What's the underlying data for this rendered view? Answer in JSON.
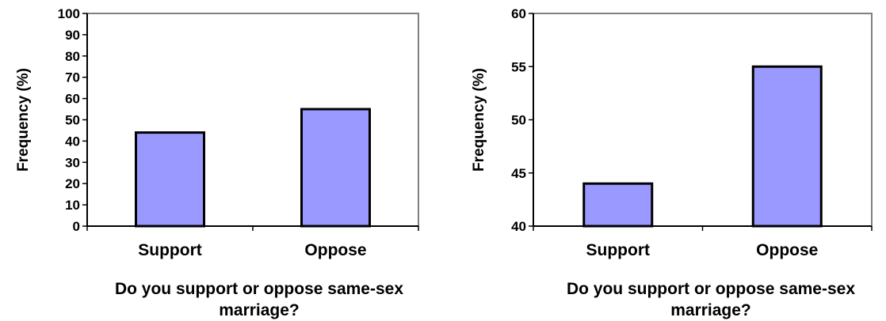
{
  "colors": {
    "bar_fill": "#9999ff",
    "bar_stroke": "#000000",
    "plot_border": "#808080"
  },
  "chart_data": [
    {
      "type": "bar",
      "categories": [
        "Support",
        "Oppose"
      ],
      "values": [
        44,
        55
      ],
      "ylabel": "Frequency (%)",
      "xlabel_lines": [
        "Do you support or oppose same-sex",
        "marriage?"
      ],
      "ylim": [
        0,
        100
      ],
      "yticks": [
        0,
        10,
        20,
        30,
        40,
        50,
        60,
        70,
        80,
        90,
        100
      ],
      "grid": false
    },
    {
      "type": "bar",
      "categories": [
        "Support",
        "Oppose"
      ],
      "values": [
        44,
        55
      ],
      "ylabel": "Frequency (%)",
      "xlabel_lines": [
        "Do you support or oppose same-sex",
        "marriage?"
      ],
      "ylim": [
        40,
        60
      ],
      "yticks": [
        40,
        45,
        50,
        55,
        60
      ],
      "grid": false
    }
  ]
}
